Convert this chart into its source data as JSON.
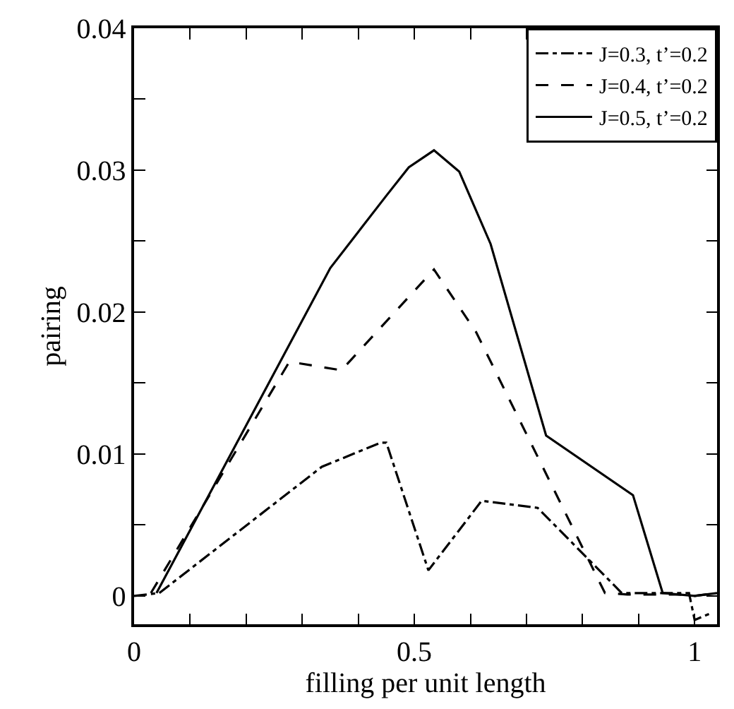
{
  "chart_data": {
    "type": "line",
    "xlabel": "filling per unit length",
    "ylabel": "pairing",
    "xlim": [
      0,
      1.04
    ],
    "ylim": [
      -0.002,
      0.04
    ],
    "xticks": [
      0,
      {
        "value": 0.1,
        "label": null
      },
      {
        "value": 0.2,
        "label": null
      },
      {
        "value": 0.3,
        "label": null
      },
      {
        "value": 0.4,
        "label": null
      },
      0.5,
      {
        "value": 0.6,
        "label": null
      },
      {
        "value": 0.7,
        "label": null
      },
      {
        "value": 0.8,
        "label": null
      },
      {
        "value": 0.9,
        "label": null
      },
      1
    ],
    "yticks": [
      0,
      {
        "value": 0.005,
        "label": null
      },
      0.01,
      {
        "value": 0.015,
        "label": null
      },
      0.02,
      {
        "value": 0.025,
        "label": null
      },
      0.03,
      {
        "value": 0.035,
        "label": null
      },
      0.04
    ],
    "legend": "top right",
    "marker": "none",
    "series": [
      {
        "name": "J=0.3, t’=0.2",
        "color": "#000000",
        "line_style": "dashdot",
        "x": [
          0,
          0.045,
          0.335,
          0.44,
          0.45,
          0.525,
          0.62,
          0.72,
          0.87,
          0.99,
          1.0,
          1.03
        ],
        "values": [
          0,
          0.0002,
          0.0091,
          0.0108,
          0.0108,
          0.0018,
          0.0067,
          0.0062,
          0.0002,
          0.0002,
          -0.0017,
          -0.0012
        ]
      },
      {
        "name": "J=0.4, t’=0.2",
        "color": "#000000",
        "line_style": "dashed",
        "x": [
          0.03,
          0.277,
          0.37,
          0.535,
          0.61,
          0.84,
          0.88,
          0.97,
          1.0,
          1.04
        ],
        "values": [
          0.0002,
          0.0165,
          0.0159,
          0.023,
          0.0186,
          0.0002,
          0.0001,
          0.0001,
          0.0,
          0.0002
        ]
      },
      {
        "name": "J=0.5, t’=0.2",
        "color": "#000000",
        "line_style": "solid",
        "x": [
          0.04,
          0.35,
          0.45,
          0.49,
          0.535,
          0.58,
          0.636,
          0.735,
          0.89,
          0.943,
          1.0,
          1.04
        ],
        "values": [
          0.0002,
          0.0231,
          0.0282,
          0.0302,
          0.0314,
          0.0299,
          0.0248,
          0.0113,
          0.0071,
          0.0002,
          0.0,
          0.0002
        ]
      }
    ]
  }
}
